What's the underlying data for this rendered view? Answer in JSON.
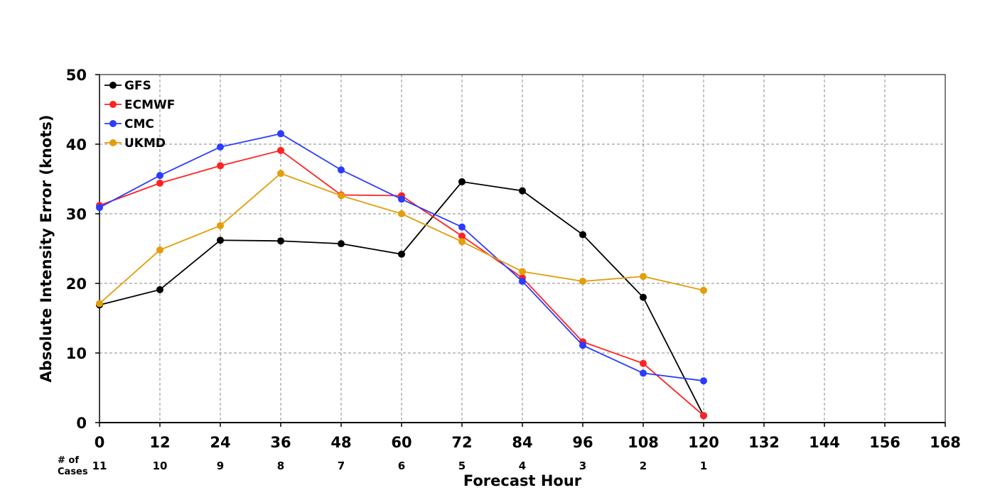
{
  "chart_data": {
    "type": "line",
    "title": "",
    "xlabel": "Forecast Hour",
    "ylabel": "Absolute Intensity Error (knots)",
    "x_ticks": [
      0,
      12,
      24,
      36,
      48,
      60,
      72,
      84,
      96,
      108,
      120,
      132,
      144,
      156,
      168
    ],
    "y_ticks": [
      0,
      10,
      20,
      30,
      40,
      50
    ],
    "xlim": [
      0,
      168
    ],
    "ylim": [
      0,
      50
    ],
    "grid": true,
    "legend_position": "top-left",
    "cases_header_line1": "# of",
    "cases_header_line2": "Cases",
    "cases": [
      {
        "x": 0,
        "count": "11"
      },
      {
        "x": 12,
        "count": "10"
      },
      {
        "x": 24,
        "count": "9"
      },
      {
        "x": 36,
        "count": "8"
      },
      {
        "x": 48,
        "count": "7"
      },
      {
        "x": 60,
        "count": "6"
      },
      {
        "x": 72,
        "count": "5"
      },
      {
        "x": 84,
        "count": "4"
      },
      {
        "x": 96,
        "count": "3"
      },
      {
        "x": 108,
        "count": "2"
      },
      {
        "x": 120,
        "count": "1"
      }
    ],
    "series": [
      {
        "name": "GFS",
        "color": "#000000",
        "x": [
          0,
          12,
          24,
          36,
          48,
          60,
          72,
          84,
          96,
          108,
          120
        ],
        "values": [
          16.9,
          19.1,
          26.2,
          26.1,
          25.7,
          24.2,
          34.6,
          33.3,
          27.0,
          18.0,
          1.0
        ]
      },
      {
        "name": "ECMWF",
        "color": "#ff2222",
        "x": [
          0,
          12,
          24,
          36,
          48,
          60,
          72,
          84,
          96,
          108,
          120
        ],
        "values": [
          31.2,
          34.4,
          36.9,
          39.1,
          32.7,
          32.6,
          26.8,
          20.8,
          11.6,
          8.5,
          1.0
        ]
      },
      {
        "name": "CMC",
        "color": "#2a3cff",
        "x": [
          0,
          12,
          24,
          36,
          48,
          60,
          72,
          84,
          96,
          108,
          120
        ],
        "values": [
          30.9,
          35.5,
          39.6,
          41.5,
          36.3,
          32.1,
          28.1,
          20.3,
          11.1,
          7.1,
          6.0
        ]
      },
      {
        "name": "UKMD",
        "color": "#e39e0a",
        "x": [
          0,
          12,
          24,
          36,
          48,
          60,
          72,
          84,
          96,
          108,
          120
        ],
        "values": [
          17.1,
          24.8,
          28.3,
          35.8,
          32.6,
          30.0,
          26.0,
          21.7,
          20.3,
          21.0,
          19.0
        ]
      }
    ]
  }
}
